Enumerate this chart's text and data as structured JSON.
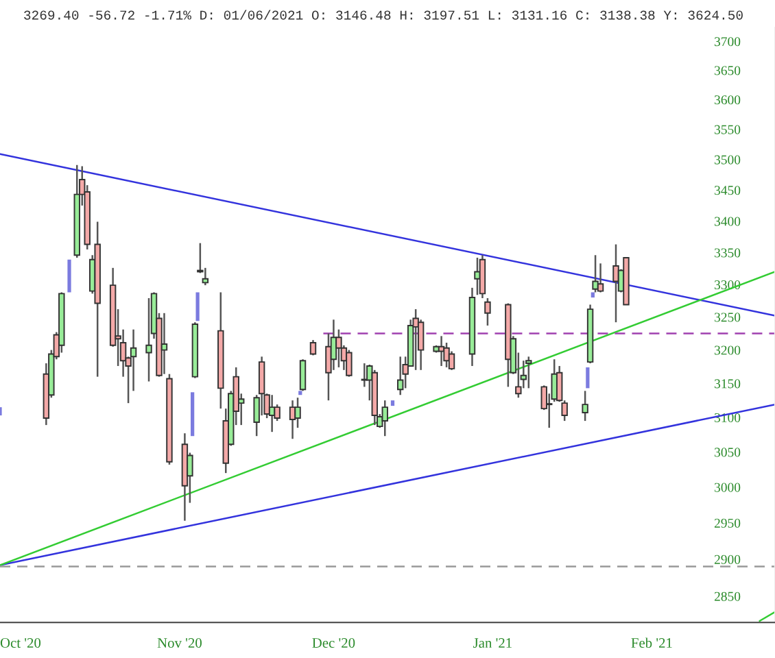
{
  "chart_data": {
    "type": "candlestick",
    "annotations": [
      "3269.40 -56.72 -1.71% D: 01/06/2021 O: 3146.48 H: 3197.51 L: 3131.16 C: 3138.38 Y: 3624.50"
    ],
    "x": [
      "2020-10-06",
      "2020-10-07",
      "2020-10-08",
      "2020-10-09",
      "2020-10-12",
      "2020-10-13",
      "2020-10-14",
      "2020-10-15",
      "2020-10-16",
      "2020-10-19",
      "2020-10-20",
      "2020-10-21",
      "2020-10-22",
      "2020-10-23",
      "2020-10-26",
      "2020-10-27",
      "2020-10-28",
      "2020-10-29",
      "2020-10-30",
      "2020-11-02",
      "2020-11-03",
      "2020-11-04",
      "2020-11-05",
      "2020-11-06",
      "2020-11-09",
      "2020-11-10",
      "2020-11-11",
      "2020-11-12",
      "2020-11-13",
      "2020-11-16",
      "2020-11-17",
      "2020-11-18",
      "2020-11-19",
      "2020-11-20",
      "2020-11-23",
      "2020-11-24",
      "2020-11-25",
      "2020-11-27",
      "2020-11-30",
      "2020-12-01",
      "2020-12-02",
      "2020-12-03",
      "2020-12-04",
      "2020-12-07",
      "2020-12-08",
      "2020-12-09",
      "2020-12-10",
      "2020-12-11",
      "2020-12-14",
      "2020-12-15",
      "2020-12-16",
      "2020-12-17",
      "2020-12-18",
      "2020-12-21",
      "2020-12-22",
      "2020-12-23",
      "2020-12-24",
      "2020-12-28",
      "2020-12-29",
      "2020-12-30",
      "2020-12-31",
      "2021-01-04",
      "2021-01-05",
      "2021-01-06",
      "2021-01-07",
      "2021-01-08",
      "2021-01-11",
      "2021-01-12",
      "2021-01-13",
      "2021-01-14",
      "2021-01-15",
      "2021-01-19",
      "2021-01-20",
      "2021-01-21",
      "2021-01-22",
      "2021-01-25",
      "2021-01-26",
      "2021-01-27"
    ],
    "ohlc": [
      [
        3164,
        3180,
        3089,
        3099
      ],
      [
        3133,
        3200,
        3129,
        3194
      ],
      [
        3223,
        3227,
        3186,
        3190
      ],
      [
        3207,
        3288,
        3196,
        3286
      ],
      [
        3346,
        3491,
        3342,
        3443
      ],
      [
        3467,
        3489,
        3425,
        3443
      ],
      [
        3447,
        3458,
        3355,
        3363
      ],
      [
        3290,
        3346,
        3286,
        3339
      ],
      [
        3363,
        3399,
        3160,
        3271
      ],
      [
        3299,
        3326,
        3205,
        3207
      ],
      [
        3221,
        3262,
        3176,
        3217
      ],
      [
        3211,
        3231,
        3160,
        3184
      ],
      [
        3188,
        3190,
        3121,
        3176
      ],
      [
        3190,
        3231,
        3139,
        3203
      ],
      [
        3196,
        3279,
        3153,
        3207
      ],
      [
        3225,
        3288,
        3217,
        3286
      ],
      [
        3248,
        3256,
        3160,
        3162
      ],
      [
        3200,
        3256,
        3164,
        3209
      ],
      [
        3157,
        3164,
        3032,
        3036
      ],
      [
        3061,
        3077,
        2953,
        3002
      ],
      [
        3016,
        3049,
        2978,
        3045
      ],
      [
        3160,
        3242,
        3158,
        3239
      ],
      [
        3322,
        3365,
        3318,
        3320
      ],
      [
        3303,
        3326,
        3299,
        3309
      ],
      [
        3229,
        3288,
        3113,
        3143
      ],
      [
        3095,
        3113,
        3020,
        3034
      ],
      [
        3061,
        3139,
        3059,
        3135
      ],
      [
        3160,
        3174,
        3089,
        3109
      ],
      [
        3121,
        3135,
        3089,
        3127
      ],
      [
        3093,
        3133,
        3073,
        3129
      ],
      [
        3182,
        3190,
        3103,
        3135
      ],
      [
        3133,
        3135,
        3099,
        3105
      ],
      [
        3103,
        3133,
        3079,
        3115
      ],
      [
        3115,
        3119,
        3095,
        3099
      ],
      [
        3115,
        3125,
        3069,
        3097
      ],
      [
        3099,
        3129,
        3085,
        3115
      ],
      [
        3141,
        3186,
        3139,
        3184
      ],
      [
        3211,
        3215,
        3192,
        3194
      ],
      [
        3205,
        3225,
        3125,
        3166
      ],
      [
        3186,
        3246,
        3170,
        3219
      ],
      [
        3219,
        3231,
        3174,
        3203
      ],
      [
        3203,
        3207,
        3170,
        3184
      ],
      [
        3196,
        3200,
        3160,
        3162
      ],
      [
        3156,
        3180,
        3145,
        3155
      ],
      [
        3155,
        3178,
        3125,
        3176
      ],
      [
        3166,
        3170,
        3089,
        3103
      ],
      [
        3087,
        3105,
        3085,
        3101
      ],
      [
        3095,
        3125,
        3073,
        3115
      ],
      [
        3141,
        3190,
        3133,
        3155
      ],
      [
        3178,
        3190,
        3143,
        3164
      ],
      [
        3176,
        3246,
        3176,
        3237
      ],
      [
        3248,
        3262,
        3170,
        3235
      ],
      [
        3242,
        3246,
        3170,
        3200
      ],
      [
        3198,
        3207,
        3196,
        3205
      ],
      [
        3205,
        3221,
        3176,
        3198
      ],
      [
        3203,
        3211,
        3174,
        3184
      ],
      [
        3194,
        3198,
        3170,
        3172
      ],
      [
        3194,
        3295,
        3176,
        3280
      ],
      [
        3309,
        3342,
        3284,
        3320
      ],
      [
        3339,
        3346,
        3279,
        3286
      ],
      [
        3273,
        3279,
        3237,
        3256
      ],
      [
        3269,
        3271,
        3145,
        3186
      ],
      [
        3166,
        3221,
        3164,
        3217
      ],
      [
        3145,
        3196,
        3129,
        3135
      ],
      [
        3156,
        3184,
        3143,
        3162
      ],
      [
        3180,
        3190,
        3143,
        3184
      ],
      [
        3145,
        3147,
        3111,
        3113
      ],
      [
        3120,
        3135,
        3085,
        3119
      ],
      [
        3127,
        3186,
        3123,
        3164
      ],
      [
        3166,
        3176,
        3123,
        3125
      ],
      [
        3121,
        3125,
        3095,
        3103
      ],
      [
        3107,
        3139,
        3095,
        3119
      ],
      [
        3182,
        3269,
        3180,
        3262
      ],
      [
        3293,
        3346,
        3288,
        3305
      ],
      [
        3301,
        3333,
        3288,
        3290
      ],
      [
        3329,
        3363,
        3242,
        3305
      ],
      [
        3290,
        3324,
        3288,
        3322
      ],
      [
        3342,
        3342,
        3269,
        3269
      ]
    ],
    "colors": [
      "#f4a9a8",
      "#98ec98",
      "#f4a9a8",
      "#98ec98",
      "#98ec98",
      "#f4a9a8",
      "#f4a9a8",
      "#98ec98",
      "#f4a9a8",
      "#f4a9a8",
      "#f4a9a8",
      "#f4a9a8",
      "#f4a9a8",
      "#98ec98",
      "#98ec98",
      "#98ec98",
      "#f4a9a8",
      "#98ec98",
      "#f4a9a8",
      "#f4a9a8",
      "#98ec98",
      "#98ec98",
      "#f4a9a8",
      "#98ec98",
      "#f4a9a8",
      "#f4a9a8",
      "#98ec98",
      "#f4a9a8",
      "#98ec98",
      "#98ec98",
      "#f4a9a8",
      "#f4a9a8",
      "#98ec98",
      "#f4a9a8",
      "#f4a9a8",
      "#98ec98",
      "#98ec98",
      "#f4a9a8",
      "#f4a9a8",
      "#98ec98",
      "#f4a9a8",
      "#f4a9a8",
      "#f4a9a8",
      "#f4a9a8",
      "#98ec98",
      "#f4a9a8",
      "#98ec98",
      "#98ec98",
      "#98ec98",
      "#f4a9a8",
      "#98ec98",
      "#f4a9a8",
      "#f4a9a8",
      "#98ec98",
      "#f4a9a8",
      "#f4a9a8",
      "#f4a9a8",
      "#98ec98",
      "#98ec98",
      "#f4a9a8",
      "#f4a9a8",
      "#f4a9a8",
      "#98ec98",
      "#f4a9a8",
      "#98ec98",
      "#98ec98",
      "#f4a9a8",
      "#f4a9a8",
      "#98ec98",
      "#f4a9a8",
      "#f4a9a8",
      "#98ec98",
      "#98ec98",
      "#98ec98",
      "#f4a9a8",
      "#f4a9a8",
      "#98ec98",
      "#f4a9a8"
    ],
    "series": [
      {
        "type": "bar",
        "color": "#7b7bdf",
        "x": [
          "2020-09-27",
          "2020-10-10T12:00",
          "2020-11-03T12:00",
          "2020-11-04T12:00",
          "2020-11-24T12:00",
          "2020-12-12T12:00",
          "2021-01-19T12:00",
          "2021-01-20T12:00"
        ],
        "base": [
          3103,
          3288,
          3073,
          3244,
          3133,
          3117,
          3143,
          3280
        ],
        "values": [
          12,
          51,
          64,
          44,
          6,
          8,
          31,
          8
        ]
      },
      {
        "type": "line",
        "color": "#3333dd",
        "line_style": "solid",
        "x": [
          "2020-09-27",
          "2021-02-25"
        ],
        "values": [
          3509,
          3252
        ]
      },
      {
        "type": "line",
        "color": "#3333dd",
        "line_style": "solid",
        "x": [
          "2020-09-27",
          "2021-02-25"
        ],
        "values": [
          2892,
          3119
        ]
      },
      {
        "type": "line",
        "color": "#33cc33",
        "line_style": "solid",
        "x": [
          "2020-09-27",
          "2021-02-25"
        ],
        "values": [
          2892,
          3320
        ]
      },
      {
        "type": "line",
        "color": "#33cc33",
        "line_style": "solid",
        "x": [
          "2021-02-22",
          "2021-02-25"
        ],
        "values": [
          2817,
          2829
        ]
      },
      {
        "type": "line",
        "color": "#a040b0",
        "line_style": "dashed",
        "x": [
          "2020-11-29",
          "2021-02-25"
        ],
        "values": [
          3225,
          3225
        ]
      }
    ],
    "ref_lines": [
      {
        "axis": "y",
        "value": 2890,
        "color": "#999999",
        "line_style": "dashed"
      }
    ],
    "log": true,
    "xlim": [
      "2020-09-27",
      "2021-02-25"
    ],
    "xticks": [
      {
        "value": "2020-10-01",
        "label": "Oct '20"
      },
      {
        "value": "2020-11-01",
        "label": "Nov '20"
      },
      {
        "value": "2020-12-01",
        "label": "Dec '20"
      },
      {
        "value": "2021-01-01",
        "label": "Jan '21"
      },
      {
        "value": "2021-02-01",
        "label": "Feb '21"
      }
    ],
    "ylim": [
      2815,
      3724
    ],
    "yticks": [
      2850,
      2900,
      2950,
      3000,
      3050,
      3100,
      3150,
      3200,
      3250,
      3300,
      3350,
      3400,
      3450,
      3500,
      3550,
      3600,
      3650,
      3700
    ]
  }
}
